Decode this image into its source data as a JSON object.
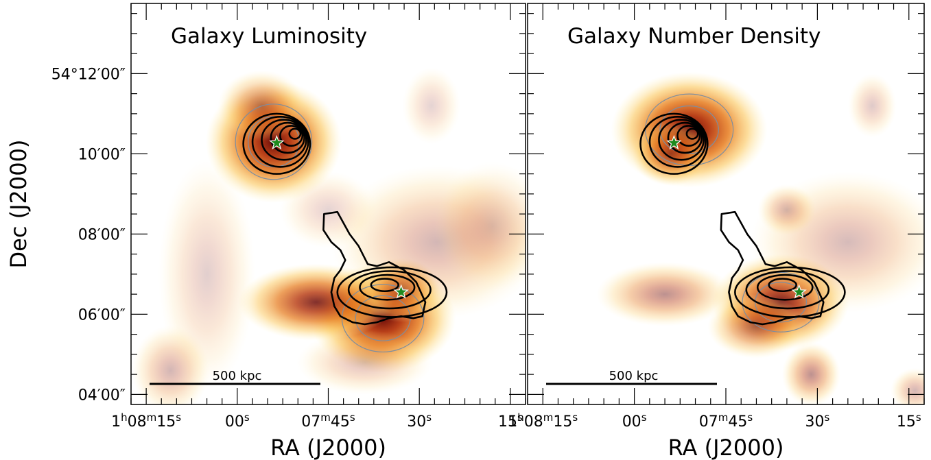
{
  "chart_data": [
    {
      "type": "heatmap",
      "title": "Galaxy Luminosity",
      "xlabel": "RA (J2000)",
      "ylabel": "Dec (J2000)",
      "x_ticks": [
        {
          "value": 0,
          "h": "1",
          "hs": "h",
          "m": "08",
          "ms": "m",
          "s": "15",
          "ss": "s"
        },
        {
          "value": 15,
          "h": "",
          "hs": "",
          "m": "",
          "ms": "",
          "s": "00",
          "ss": "s"
        },
        {
          "value": 30,
          "h": "",
          "hs": "",
          "m": "07",
          "ms": "m",
          "s": "45",
          "ss": "s"
        },
        {
          "value": 45,
          "h": "",
          "hs": "",
          "m": "",
          "ms": "",
          "s": "30",
          "ss": "s"
        },
        {
          "value": 60,
          "h": "",
          "hs": "",
          "m": "",
          "ms": "",
          "s": "15",
          "ss": "s"
        }
      ],
      "y_ticks": [
        {
          "value": 12,
          "label": "54°12′00″"
        },
        {
          "value": 10,
          "label": "10′00″"
        },
        {
          "value": 8,
          "label": "08′00″"
        },
        {
          "value": 6,
          "label": "06′00″"
        },
        {
          "value": 4,
          "label": "04′00″"
        }
      ],
      "xlim": [
        -2.5,
        62.5
      ],
      "ylim": [
        3.75,
        13.75
      ],
      "scale_bar": {
        "label": "500 kpc"
      },
      "markers": [
        {
          "x": 21.5,
          "y": 10.27
        },
        {
          "x": 42,
          "y": 6.55
        }
      ],
      "blobs": [
        {
          "x": 21,
          "y": 10.3,
          "sx": 7,
          "sy": 0.95,
          "a": 1.0
        },
        {
          "x": 19,
          "y": 11.2,
          "sx": 4.5,
          "sy": 0.55,
          "a": 0.45
        },
        {
          "x": 39,
          "y": 5.9,
          "sx": 7.5,
          "sy": 0.85,
          "a": 1.0
        },
        {
          "x": 28,
          "y": 6.3,
          "sx": 8,
          "sy": 0.6,
          "a": 0.85
        },
        {
          "x": 42,
          "y": 6.6,
          "sx": 4,
          "sy": 0.5,
          "a": 0.6
        },
        {
          "x": 48,
          "y": 7.8,
          "sx": 11,
          "sy": 1.2,
          "a": 0.3
        },
        {
          "x": 10,
          "y": 7.0,
          "sx": 5,
          "sy": 1.8,
          "a": 0.2
        },
        {
          "x": 4,
          "y": 4.6,
          "sx": 4,
          "sy": 0.7,
          "a": 0.3
        },
        {
          "x": 36,
          "y": 4.8,
          "sx": 7,
          "sy": 0.5,
          "a": 0.25
        },
        {
          "x": 57,
          "y": 8.2,
          "sx": 6,
          "sy": 1.0,
          "a": 0.22
        },
        {
          "x": 30,
          "y": 8.6,
          "sx": 5,
          "sy": 0.6,
          "a": 0.18
        },
        {
          "x": 47,
          "y": 11.2,
          "sx": 3,
          "sy": 0.6,
          "a": 0.18
        }
      ]
    },
    {
      "type": "heatmap",
      "title": "Galaxy Number Density",
      "xlabel": "RA (J2000)",
      "ylabel": "",
      "x_ticks": [
        {
          "value": 0,
          "h": "1",
          "hs": "h",
          "m": "08",
          "ms": "m",
          "s": "15",
          "ss": "s"
        },
        {
          "value": 15,
          "h": "",
          "hs": "",
          "m": "",
          "ms": "",
          "s": "00",
          "ss": "s"
        },
        {
          "value": 30,
          "h": "",
          "hs": "",
          "m": "07",
          "ms": "m",
          "s": "45",
          "ss": "s"
        },
        {
          "value": 45,
          "h": "",
          "hs": "",
          "m": "",
          "ms": "",
          "s": "30",
          "ss": "s"
        },
        {
          "value": 60,
          "h": "",
          "hs": "",
          "m": "",
          "ms": "",
          "s": "15",
          "ss": "s"
        }
      ],
      "y_ticks": [
        {
          "value": 12,
          "label": ""
        },
        {
          "value": 10,
          "label": ""
        },
        {
          "value": 8,
          "label": ""
        },
        {
          "value": 6,
          "label": ""
        },
        {
          "value": 4,
          "label": ""
        }
      ],
      "xlim": [
        -2.5,
        62.5
      ],
      "ylim": [
        3.75,
        13.75
      ],
      "scale_bar": {
        "label": "500 kpc"
      },
      "markers": [
        {
          "x": 21.5,
          "y": 10.27
        },
        {
          "x": 42,
          "y": 6.55
        }
      ],
      "blobs": [
        {
          "x": 24,
          "y": 10.6,
          "sx": 8,
          "sy": 0.9,
          "a": 1.0
        },
        {
          "x": 21,
          "y": 10.0,
          "sx": 4,
          "sy": 0.5,
          "a": 0.6
        },
        {
          "x": 39,
          "y": 6.3,
          "sx": 7,
          "sy": 0.75,
          "a": 0.9
        },
        {
          "x": 35,
          "y": 5.7,
          "sx": 5,
          "sy": 0.5,
          "a": 0.55
        },
        {
          "x": 20,
          "y": 6.5,
          "sx": 7,
          "sy": 0.5,
          "a": 0.45
        },
        {
          "x": 50,
          "y": 7.8,
          "sx": 10,
          "sy": 1.1,
          "a": 0.28
        },
        {
          "x": 40,
          "y": 8.6,
          "sx": 3,
          "sy": 0.4,
          "a": 0.3
        },
        {
          "x": 44,
          "y": 4.5,
          "sx": 3,
          "sy": 0.5,
          "a": 0.45
        },
        {
          "x": 54,
          "y": 11.2,
          "sx": 2.5,
          "sy": 0.5,
          "a": 0.22
        },
        {
          "x": 61,
          "y": 4.1,
          "sx": 2.5,
          "sy": 0.35,
          "a": 0.3
        }
      ]
    }
  ]
}
